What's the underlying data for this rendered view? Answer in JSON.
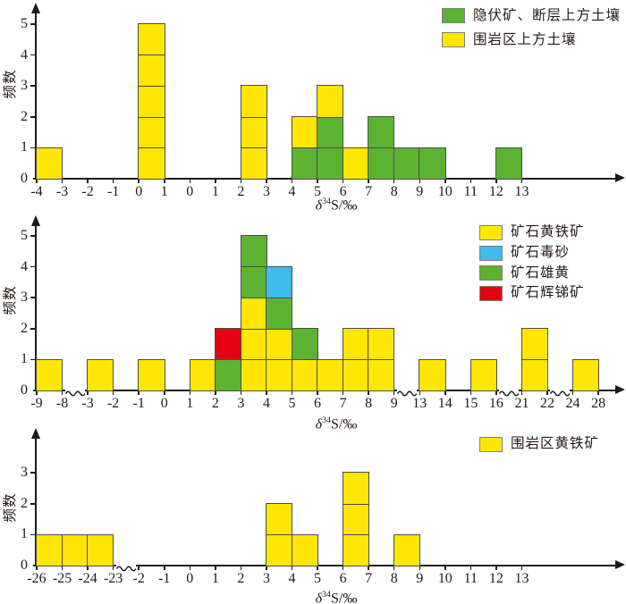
{
  "figure": {
    "background": "#ffffff",
    "description_visible_text_only": true
  },
  "colors": {
    "yellow": "#FFE604",
    "green": "#5CB231",
    "blue": "#3DBBEA",
    "red": "#E60012",
    "cell_border": "#4f4c4c",
    "axis": "#1a1a1a",
    "legend_swatch_border": "#808080"
  },
  "chart_data": [
    {
      "type": "bar",
      "subtype": "stacked-unit-histogram",
      "id": "soil",
      "ylabel": "频数",
      "xlabel": {
        "delta": "δ",
        "sup": "34",
        "rest": "S/‰"
      },
      "ylim": [
        0,
        5
      ],
      "yticks": [
        "0",
        "1",
        "2",
        "3",
        "4",
        "5"
      ],
      "xticks": [
        "-4",
        "-3",
        "-2",
        "-1",
        "0",
        "1",
        "0",
        "1",
        "2",
        "3",
        "4",
        "5",
        "6",
        "7",
        "8",
        "9",
        "10",
        "11",
        "12",
        "13"
      ],
      "axis_breaks_after_tick_index": [],
      "legend_position": "top-right",
      "legend": [
        {
          "color": "green",
          "label": "隐伏矿、断层上方土壤"
        },
        {
          "color": "yellow",
          "label": "围岩区上方土壤"
        }
      ],
      "bars": [
        {
          "interval": "-4~-3",
          "i": 0,
          "cells": [
            "yellow"
          ]
        },
        {
          "interval": "0~1",
          "i": 4,
          "cells": [
            "yellow",
            "yellow",
            "yellow",
            "yellow",
            "yellow"
          ]
        },
        {
          "interval": "2~3",
          "i": 8,
          "cells": [
            "yellow",
            "yellow",
            "yellow"
          ]
        },
        {
          "interval": "4~5",
          "i": 10,
          "cells": [
            "green",
            "yellow"
          ]
        },
        {
          "interval": "5~6",
          "i": 11,
          "cells": [
            "green",
            "green",
            "yellow"
          ]
        },
        {
          "interval": "6~7",
          "i": 12,
          "cells": [
            "yellow"
          ]
        },
        {
          "interval": "7~8",
          "i": 13,
          "cells": [
            "green",
            "green"
          ]
        },
        {
          "interval": "8~9",
          "i": 14,
          "cells": [
            "green"
          ]
        },
        {
          "interval": "9~10",
          "i": 15,
          "cells": [
            "green"
          ]
        },
        {
          "interval": "12~13",
          "i": 18,
          "cells": [
            "green"
          ]
        }
      ]
    },
    {
      "type": "bar",
      "subtype": "stacked-unit-histogram",
      "id": "ore-minerals",
      "ylabel": "频数",
      "xlabel": {
        "delta": "δ",
        "sup": "34",
        "rest": "S/‰"
      },
      "ylim": [
        0,
        5
      ],
      "yticks": [
        "0",
        "1",
        "2",
        "3",
        "4",
        "5"
      ],
      "xticks": [
        "-9",
        "-8",
        "-3",
        "-2",
        "-1",
        "0",
        "1",
        "2",
        "3",
        "4",
        "5",
        "6",
        "7",
        "8",
        "9",
        "13",
        "14",
        "15",
        "16",
        "21",
        "22",
        "24",
        "28"
      ],
      "axis_breaks_after_tick_index": [
        1,
        14,
        18,
        20
      ],
      "legend_position": "top-right",
      "legend": [
        {
          "color": "yellow",
          "label": "矿石黄铁矿"
        },
        {
          "color": "blue",
          "label": "矿石毒砂"
        },
        {
          "color": "green",
          "label": "矿石雄黄"
        },
        {
          "color": "red",
          "label": "矿石辉锑矿"
        }
      ],
      "bars": [
        {
          "interval": "-9~-8",
          "i": 0,
          "cells": [
            "yellow"
          ]
        },
        {
          "interval": "-3~-2",
          "i": 2,
          "cells": [
            "yellow"
          ]
        },
        {
          "interval": "-1~0",
          "i": 4,
          "cells": [
            "yellow"
          ]
        },
        {
          "interval": "1~2",
          "i": 6,
          "cells": [
            "yellow"
          ]
        },
        {
          "interval": "2~3",
          "i": 7,
          "cells": [
            "green",
            "red"
          ]
        },
        {
          "interval": "3~4",
          "i": 8,
          "cells": [
            "yellow",
            "yellow",
            "yellow",
            "green",
            "green"
          ]
        },
        {
          "interval": "4~5",
          "i": 9,
          "cells": [
            "yellow",
            "yellow",
            "green",
            "blue"
          ]
        },
        {
          "interval": "5~6",
          "i": 10,
          "cells": [
            "yellow",
            "green"
          ]
        },
        {
          "interval": "6~7",
          "i": 11,
          "cells": [
            "yellow"
          ]
        },
        {
          "interval": "7~8",
          "i": 12,
          "cells": [
            "yellow",
            "yellow"
          ]
        },
        {
          "interval": "8~9",
          "i": 13,
          "cells": [
            "yellow",
            "yellow"
          ]
        },
        {
          "interval": "13~14",
          "i": 15,
          "cells": [
            "yellow"
          ]
        },
        {
          "interval": "15~16",
          "i": 17,
          "cells": [
            "yellow"
          ]
        },
        {
          "interval": "21~22",
          "i": 19,
          "cells": [
            "yellow",
            "yellow"
          ]
        },
        {
          "interval": "24~28",
          "i": 21,
          "cells": [
            "yellow"
          ]
        }
      ]
    },
    {
      "type": "bar",
      "subtype": "stacked-unit-histogram",
      "id": "wallrock-pyrite",
      "ylabel": "频数",
      "xlabel": {
        "delta": "δ",
        "sup": "34",
        "rest": "S/‰"
      },
      "ylim": [
        0,
        3
      ],
      "yticks": [
        "0",
        "1",
        "2",
        "3"
      ],
      "xticks": [
        "-26",
        "-25",
        "-24",
        "-23",
        "-2",
        "-1",
        "0",
        "1",
        "2",
        "3",
        "4",
        "5",
        "6",
        "7",
        "8",
        "9",
        "10",
        "11",
        "12",
        "13"
      ],
      "axis_breaks_after_tick_index": [
        3
      ],
      "legend_position": "top-right",
      "legend": [
        {
          "color": "yellow",
          "label": "围岩区黄铁矿"
        }
      ],
      "bars": [
        {
          "interval": "-26~-25",
          "i": 0,
          "cells": [
            "yellow"
          ]
        },
        {
          "interval": "-25~-24",
          "i": 1,
          "cells": [
            "yellow"
          ]
        },
        {
          "interval": "-24~-23",
          "i": 2,
          "cells": [
            "yellow"
          ]
        },
        {
          "interval": "3~4",
          "i": 9,
          "cells": [
            "yellow",
            "yellow"
          ]
        },
        {
          "interval": "4~5",
          "i": 10,
          "cells": [
            "yellow"
          ]
        },
        {
          "interval": "6~7",
          "i": 12,
          "cells": [
            "yellow",
            "yellow",
            "yellow"
          ]
        },
        {
          "interval": "8~9",
          "i": 14,
          "cells": [
            "yellow"
          ]
        }
      ]
    }
  ]
}
